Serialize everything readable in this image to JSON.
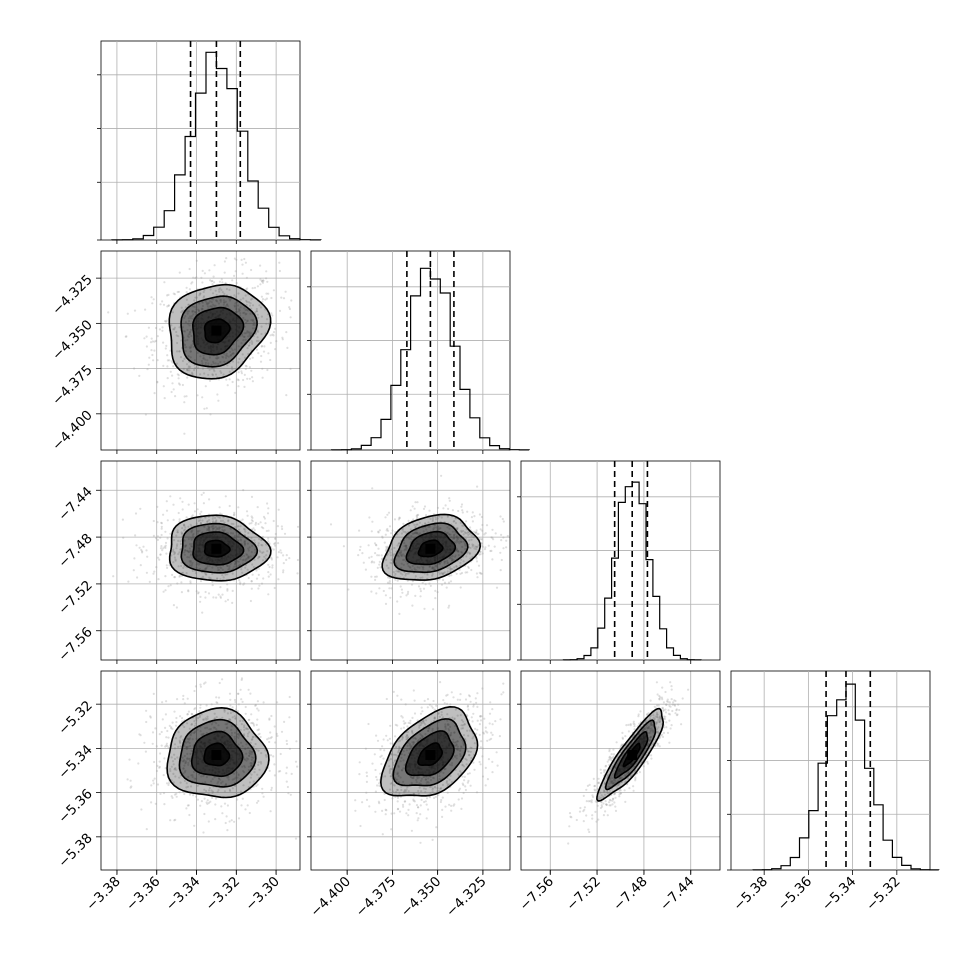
{
  "chart_data": {
    "type": "corner",
    "title": "",
    "parameter_labels": [
      "",
      "",
      "",
      ""
    ],
    "parameters": [
      {
        "range": [
          -3.388,
          -3.288
        ],
        "ticks": [
          "-3.38",
          "-3.36",
          "-3.34",
          "-3.32",
          "-3.30"
        ],
        "tick_values": [
          -3.38,
          -3.36,
          -3.34,
          -3.32,
          -3.3
        ],
        "median": -3.33,
        "q16": -3.343,
        "q84": -3.318,
        "sigma": 0.0125
      },
      {
        "range": [
          -4.42,
          -4.31
        ],
        "ticks": [
          "-4.400",
          "-4.375",
          "-4.350",
          "-4.325"
        ],
        "tick_values": [
          -4.4,
          -4.375,
          -4.35,
          -4.325
        ],
        "median": -4.354,
        "q16": -4.367,
        "q84": -4.341,
        "sigma": 0.013
      },
      {
        "range": [
          -7.585,
          -7.415
        ],
        "ticks": [
          "-7.56",
          "-7.52",
          "-7.48",
          "-7.44"
        ],
        "tick_values": [
          -7.56,
          -7.52,
          -7.48,
          -7.44
        ],
        "median": -7.49,
        "q16": -7.505,
        "q84": -7.477,
        "sigma": 0.014
      },
      {
        "range": [
          -5.395,
          -5.305
        ],
        "ticks": [
          "-5.38",
          "-5.36",
          "-5.34",
          "-5.32"
        ],
        "tick_values": [
          -5.38,
          -5.36,
          -5.34,
          -5.32
        ],
        "median": -5.343,
        "q16": -5.352,
        "q84": -5.332,
        "sigma": 0.01
      }
    ],
    "correlations": [
      {
        "x": 0,
        "y": 1,
        "rho": 0.15
      },
      {
        "x": 0,
        "y": 2,
        "rho": -0.05
      },
      {
        "x": 1,
        "y": 2,
        "rho": 0.25
      },
      {
        "x": 0,
        "y": 3,
        "rho": 0.0
      },
      {
        "x": 1,
        "y": 3,
        "rho": 0.4
      },
      {
        "x": 2,
        "y": 3,
        "rho": 0.88
      }
    ],
    "contour_levels_sigma": [
      0.5,
      1.0,
      1.5,
      2.0
    ],
    "dashed_quantiles": [
      0.16,
      0.5,
      0.84
    ],
    "grid": true,
    "colors": {
      "line": "#000000",
      "grid": "#b0b0b0",
      "points": "#9a9a9a"
    }
  }
}
